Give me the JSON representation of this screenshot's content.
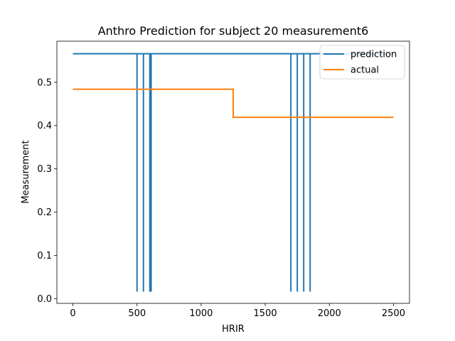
{
  "chart_data": {
    "type": "line",
    "title": "Anthro Prediction for subject 20 measurement6",
    "xlabel": "HRIR",
    "ylabel": "Measurement",
    "xlim": [
      -125,
      2625
    ],
    "ylim": [
      -0.011,
      0.595
    ],
    "xticks": [
      0,
      500,
      1000,
      1500,
      2000,
      2500
    ],
    "xtick_labels": [
      "0",
      "500",
      "1000",
      "1500",
      "2000",
      "2500"
    ],
    "yticks": [
      0.0,
      0.1,
      0.2,
      0.3,
      0.4,
      0.5
    ],
    "ytick_labels": [
      "0.0",
      "0.1",
      "0.2",
      "0.3",
      "0.4",
      "0.5"
    ],
    "legend_position": "top-right",
    "series": [
      {
        "name": "prediction",
        "color": "#1f77b4",
        "x": [
          0,
          500,
          500,
          500,
          500,
          550,
          550,
          550,
          600,
          600,
          600,
          610,
          610,
          610,
          1700,
          1700,
          1700,
          1750,
          1750,
          1750,
          1800,
          1800,
          1800,
          1850,
          1850,
          1850,
          2500
        ],
        "y": [
          0.566,
          0.566,
          0.016,
          0.016,
          0.566,
          0.566,
          0.016,
          0.566,
          0.566,
          0.016,
          0.566,
          0.566,
          0.016,
          0.566,
          0.566,
          0.016,
          0.566,
          0.566,
          0.016,
          0.566,
          0.566,
          0.016,
          0.566,
          0.566,
          0.016,
          0.566,
          0.566
        ]
      },
      {
        "name": "actual",
        "color": "#ff7f0e",
        "x": [
          0,
          1250,
          1250,
          2500
        ],
        "y": [
          0.484,
          0.484,
          0.419,
          0.419
        ]
      }
    ]
  }
}
